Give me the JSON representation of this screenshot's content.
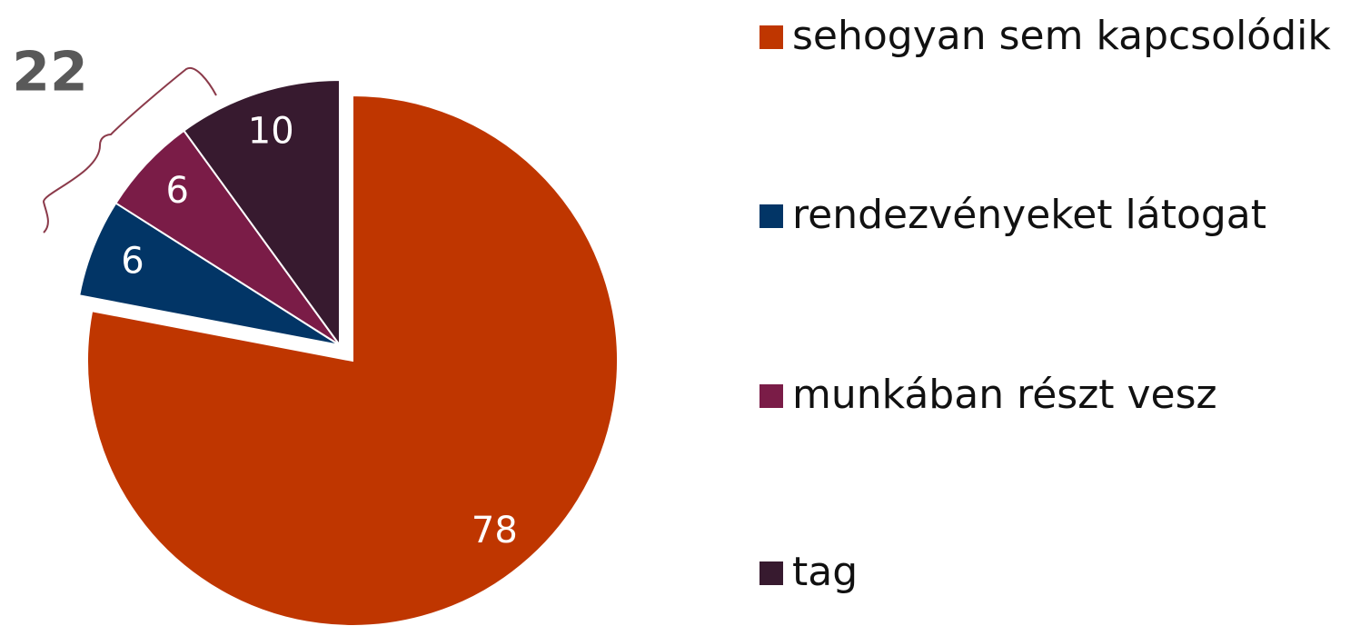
{
  "chart_data": {
    "type": "pie",
    "categories": [
      "sehogyan sem kapcsolódik",
      "rendezvényeket látogat",
      "munkában részt vesz",
      "tag"
    ],
    "values": [
      78,
      6,
      6,
      10
    ],
    "colors": [
      "#bf3600",
      "#023566",
      "#7a1c47",
      "#371a2f"
    ],
    "exploded": [
      true,
      false,
      false,
      false
    ],
    "annotations": [
      {
        "text": "22"
      }
    ],
    "legend": "right"
  }
}
